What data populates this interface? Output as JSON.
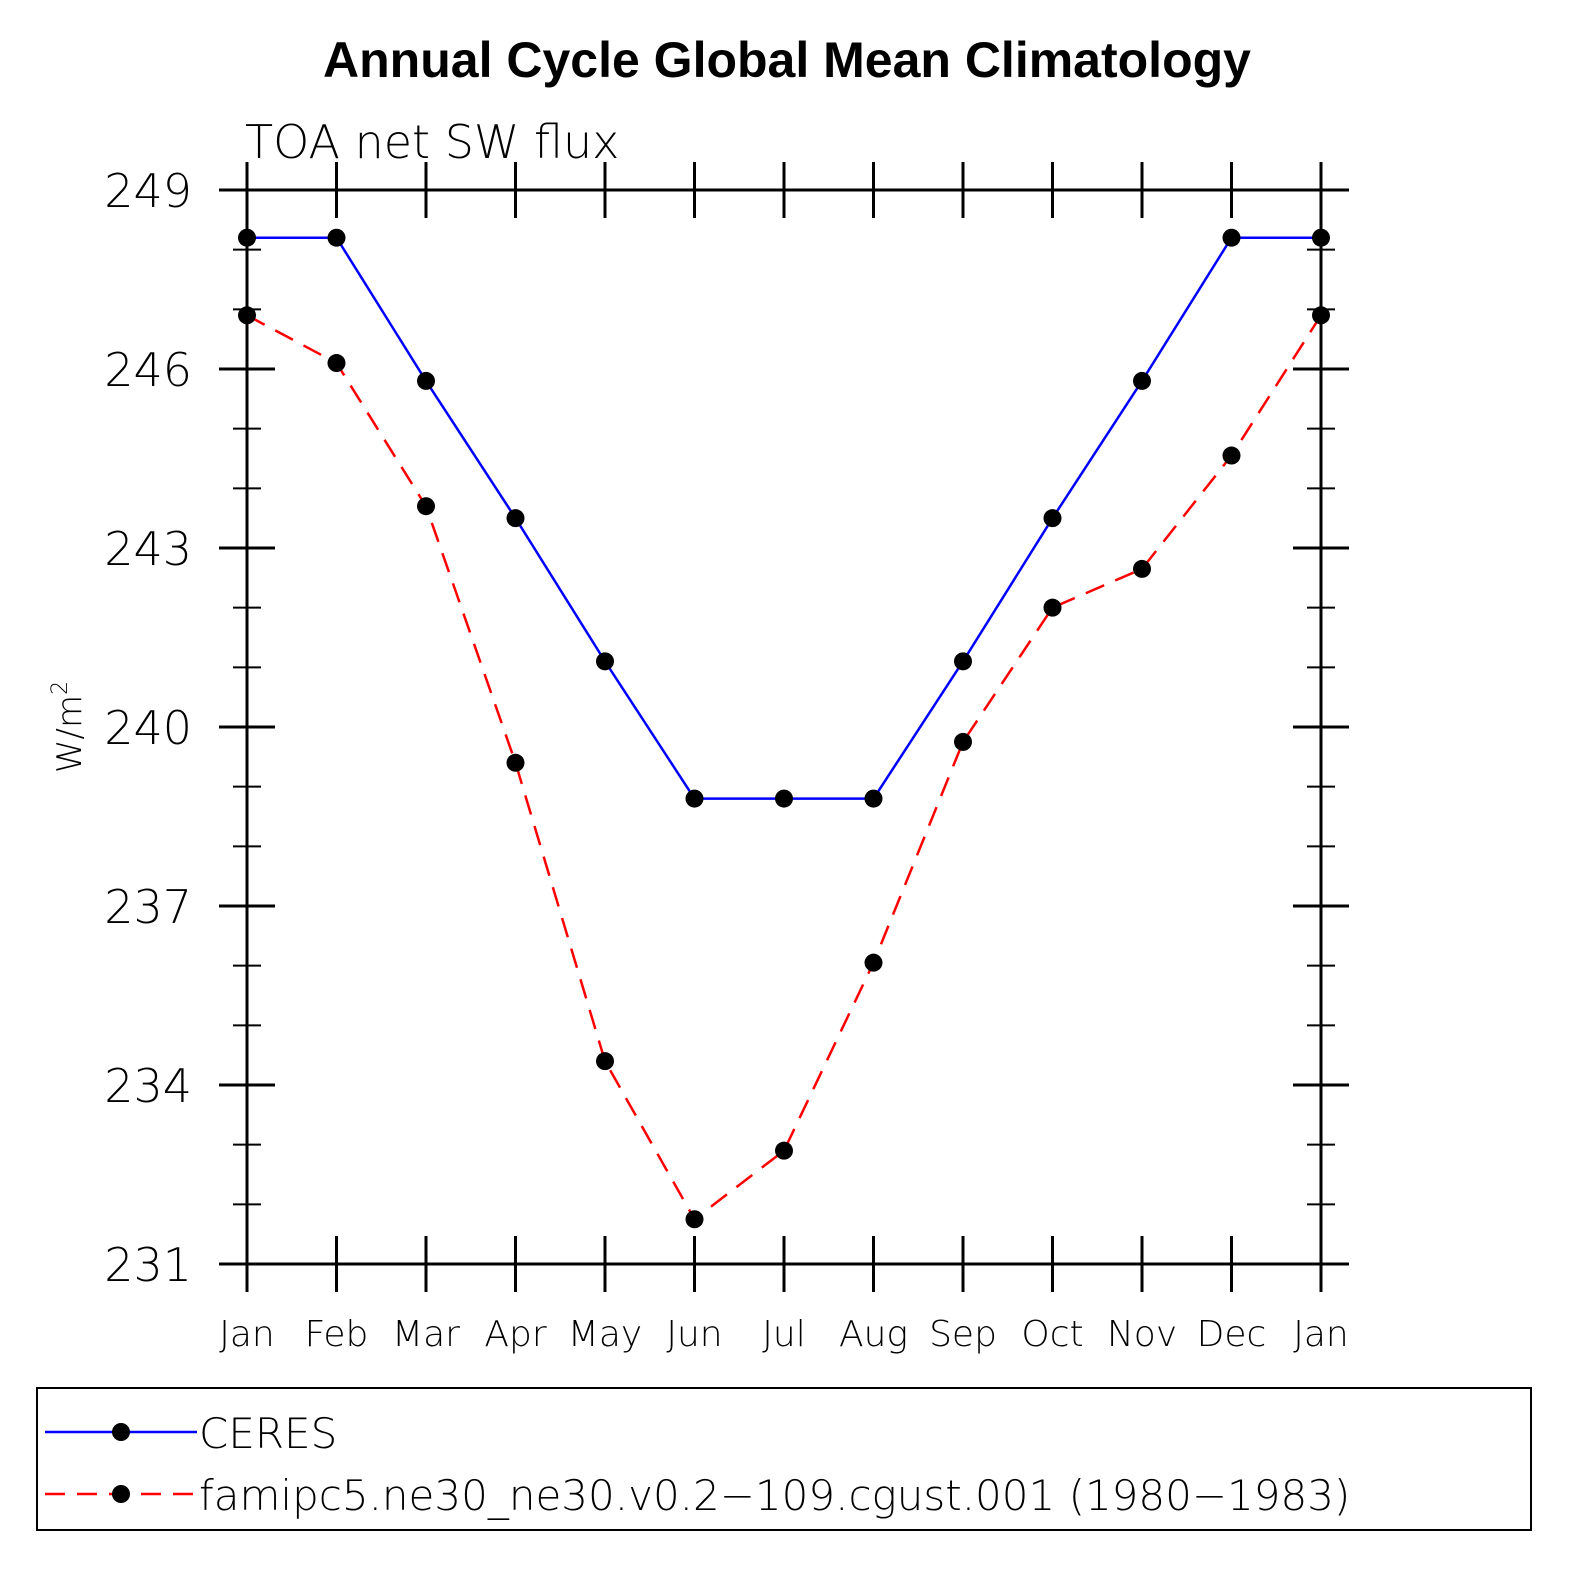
{
  "chart_data": {
    "type": "line",
    "title": "Annual Cycle Global Mean Climatology",
    "subtitle": "TOA net SW flux",
    "xlabel": "",
    "ylabel": "W/m",
    "ylabel_sup": "2",
    "categories": [
      "Jan",
      "Feb",
      "Mar",
      "Apr",
      "May",
      "Jun",
      "Jul",
      "Aug",
      "Sep",
      "Oct",
      "Nov",
      "Dec",
      "Jan"
    ],
    "ylim": [
      231,
      249
    ],
    "yticks": [
      231,
      234,
      237,
      240,
      243,
      246,
      249
    ],
    "yminor_step": 1,
    "grid": false,
    "legend_position": "bottom",
    "series": [
      {
        "name": "CERES",
        "color": "#0000ff",
        "dash": "solid",
        "marker": "circle",
        "values": [
          248.2,
          248.2,
          245.8,
          243.5,
          241.1,
          238.8,
          238.8,
          238.8,
          241.1,
          243.5,
          245.8,
          248.2,
          248.2
        ]
      },
      {
        "name": "famipc5.ne30_ne30.v0.2−109.cgust.001 (1980−1983)",
        "color": "#ff0000",
        "dash": "dashed",
        "marker": "circle",
        "values": [
          246.9,
          246.1,
          243.7,
          239.4,
          234.4,
          231.75,
          232.9,
          236.05,
          239.75,
          242.0,
          242.65,
          244.55,
          246.9
        ]
      }
    ]
  }
}
